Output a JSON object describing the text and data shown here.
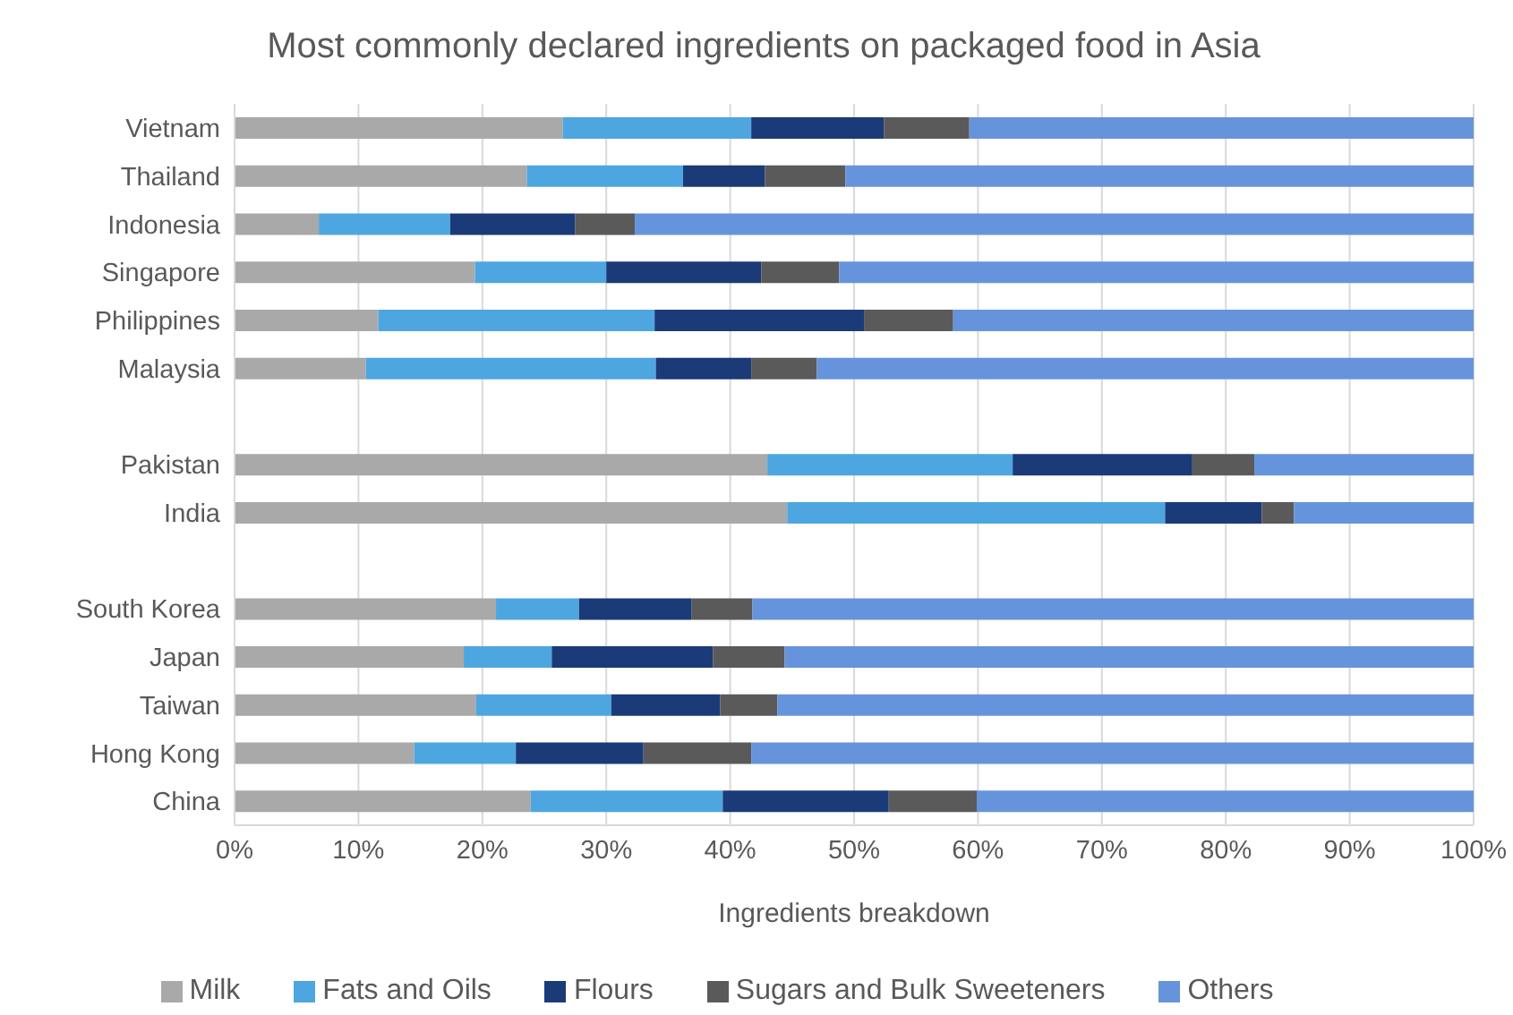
{
  "chart_data": {
    "type": "bar",
    "orientation": "horizontal",
    "stacked": true,
    "title": "Most commonly declared ingredients on packaged food in Asia",
    "xlabel": "Ingredients breakdown",
    "categories": [
      "Vietnam",
      "Thailand",
      "Indonesia",
      "Singapore",
      "Philippines",
      "Malaysia",
      null,
      "Pakistan",
      "India",
      null,
      "South Korea",
      "Japan",
      "Taiwan",
      "Hong Kong",
      "China"
    ],
    "series": [
      {
        "name": "Milk",
        "color": "#a9a9a9",
        "values": [
          26.5,
          23.6,
          6.8,
          19.4,
          11.6,
          10.6,
          null,
          43.0,
          44.6,
          null,
          21.1,
          18.5,
          19.5,
          14.5,
          23.9
        ]
      },
      {
        "name": "Fats and Oils",
        "color": "#4ea6e0",
        "values": [
          15.2,
          12.6,
          10.6,
          10.6,
          22.3,
          23.4,
          null,
          19.8,
          30.5,
          null,
          6.7,
          7.1,
          10.9,
          8.2,
          15.5
        ]
      },
      {
        "name": "Flours",
        "color": "#1b3a78",
        "values": [
          10.7,
          6.6,
          10.1,
          12.5,
          16.9,
          7.7,
          null,
          14.5,
          7.8,
          null,
          9.1,
          13.0,
          8.8,
          10.3,
          13.4
        ]
      },
      {
        "name": "Sugars and Bulk Sweeteners",
        "color": "#5a5a5a",
        "values": [
          6.9,
          6.5,
          4.8,
          6.3,
          7.2,
          5.3,
          null,
          5.0,
          2.6,
          null,
          4.9,
          5.8,
          4.6,
          8.7,
          7.1
        ]
      },
      {
        "name": "Others",
        "color": "#6694dc",
        "values": [
          40.7,
          50.7,
          67.7,
          51.2,
          42.0,
          53.0,
          null,
          17.7,
          14.5,
          null,
          58.2,
          55.6,
          56.2,
          58.3,
          40.1
        ]
      }
    ],
    "xlim": [
      0,
      100
    ],
    "xticks": [
      {
        "value": 0,
        "label": "0%"
      },
      {
        "value": 10,
        "label": "10%"
      },
      {
        "value": 20,
        "label": "20%"
      },
      {
        "value": 30,
        "label": "30%"
      },
      {
        "value": 40,
        "label": "40%"
      },
      {
        "value": 50,
        "label": "50%"
      },
      {
        "value": 60,
        "label": "60%"
      },
      {
        "value": 70,
        "label": "70%"
      },
      {
        "value": 80,
        "label": "80%"
      },
      {
        "value": 90,
        "label": "90%"
      },
      {
        "value": 100,
        "label": "100%"
      }
    ],
    "grid": "x",
    "legend": "bottom"
  }
}
